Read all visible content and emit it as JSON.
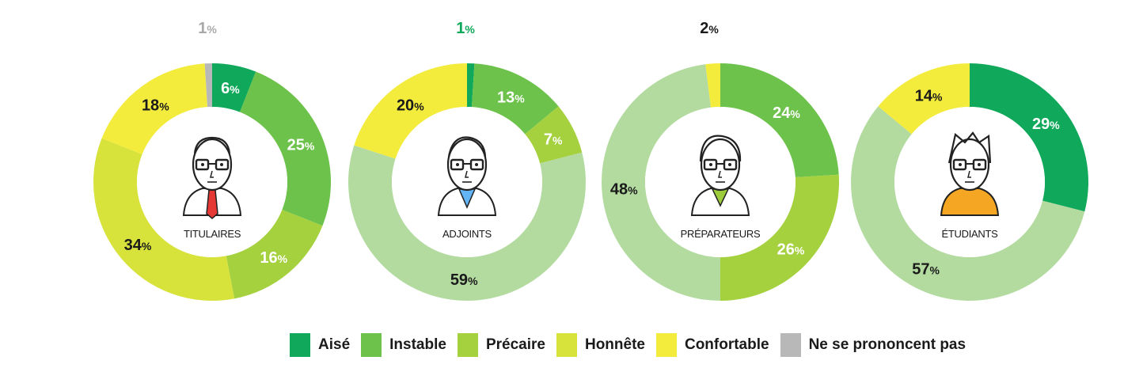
{
  "colors": {
    "Aisé": "#10a85a",
    "Instable": "#6cc24a",
    "Précaire": "#a5d13f",
    "Honnête": "#d7e23a",
    "Confortable": "#f3ec3c",
    "Ne se prononcent pas": "#b8b8b8",
    "light_green": "#b3dba0"
  },
  "chart_data": [
    {
      "type": "pie",
      "donut": true,
      "name": "TITULAIRES",
      "start_angle_deg": 0,
      "slices": [
        {
          "category": "Aisé",
          "value": 6,
          "label": "6"
        },
        {
          "category": "Instable",
          "value": 25,
          "label": "25"
        },
        {
          "category": "Précaire",
          "value": 16,
          "label": "16"
        },
        {
          "category": "Honnête",
          "value": 34,
          "label": "34"
        },
        {
          "category": "Confortable",
          "value": 18,
          "label": "18"
        },
        {
          "category": "Ne se prononcent pas",
          "value": 1,
          "label": "1"
        }
      ]
    },
    {
      "type": "pie",
      "donut": true,
      "name": "ADJOINTS",
      "start_angle_deg": 0,
      "slices": [
        {
          "category": "Aisé",
          "value": 1,
          "label": "1"
        },
        {
          "category": "Instable",
          "value": 13,
          "label": "13"
        },
        {
          "category": "Précaire",
          "value": 7,
          "label": "7"
        },
        {
          "category": "light_green",
          "value": 59,
          "label": "59"
        },
        {
          "category": "Confortable",
          "value": 20,
          "label": "20"
        }
      ]
    },
    {
      "type": "pie",
      "donut": true,
      "name": "PRÉPARATEURS",
      "start_angle_deg": 0,
      "slices": [
        {
          "category": "Instable",
          "value": 24,
          "label": "24"
        },
        {
          "category": "Précaire",
          "value": 26,
          "label": "26"
        },
        {
          "category": "light_green",
          "value": 48,
          "label": "48"
        },
        {
          "category": "Confortable",
          "value": 2,
          "label": "2"
        }
      ]
    },
    {
      "type": "pie",
      "donut": true,
      "name": "ÉTUDIANTS",
      "start_angle_deg": 0,
      "slices": [
        {
          "category": "Aisé",
          "value": 29,
          "label": "29"
        },
        {
          "category": "light_green",
          "value": 57,
          "label": "57"
        },
        {
          "category": "Confortable",
          "value": 14,
          "label": "14"
        }
      ]
    }
  ],
  "percent_sign": "%",
  "legend": [
    {
      "label": "Aisé",
      "color": "#10a85a"
    },
    {
      "label": "Instable",
      "color": "#6cc24a"
    },
    {
      "label": "Précaire",
      "color": "#a5d13f"
    },
    {
      "label": "Honnête",
      "color": "#d7e23a"
    },
    {
      "label": "Confortable",
      "color": "#f3ec3c"
    },
    {
      "label": "Ne se prononcent pas",
      "color": "#b8b8b8"
    }
  ],
  "icons": [
    "titulaire-avatar-icon",
    "adjoint-avatar-icon",
    "preparateur-avatar-icon",
    "etudiant-avatar-icon"
  ]
}
